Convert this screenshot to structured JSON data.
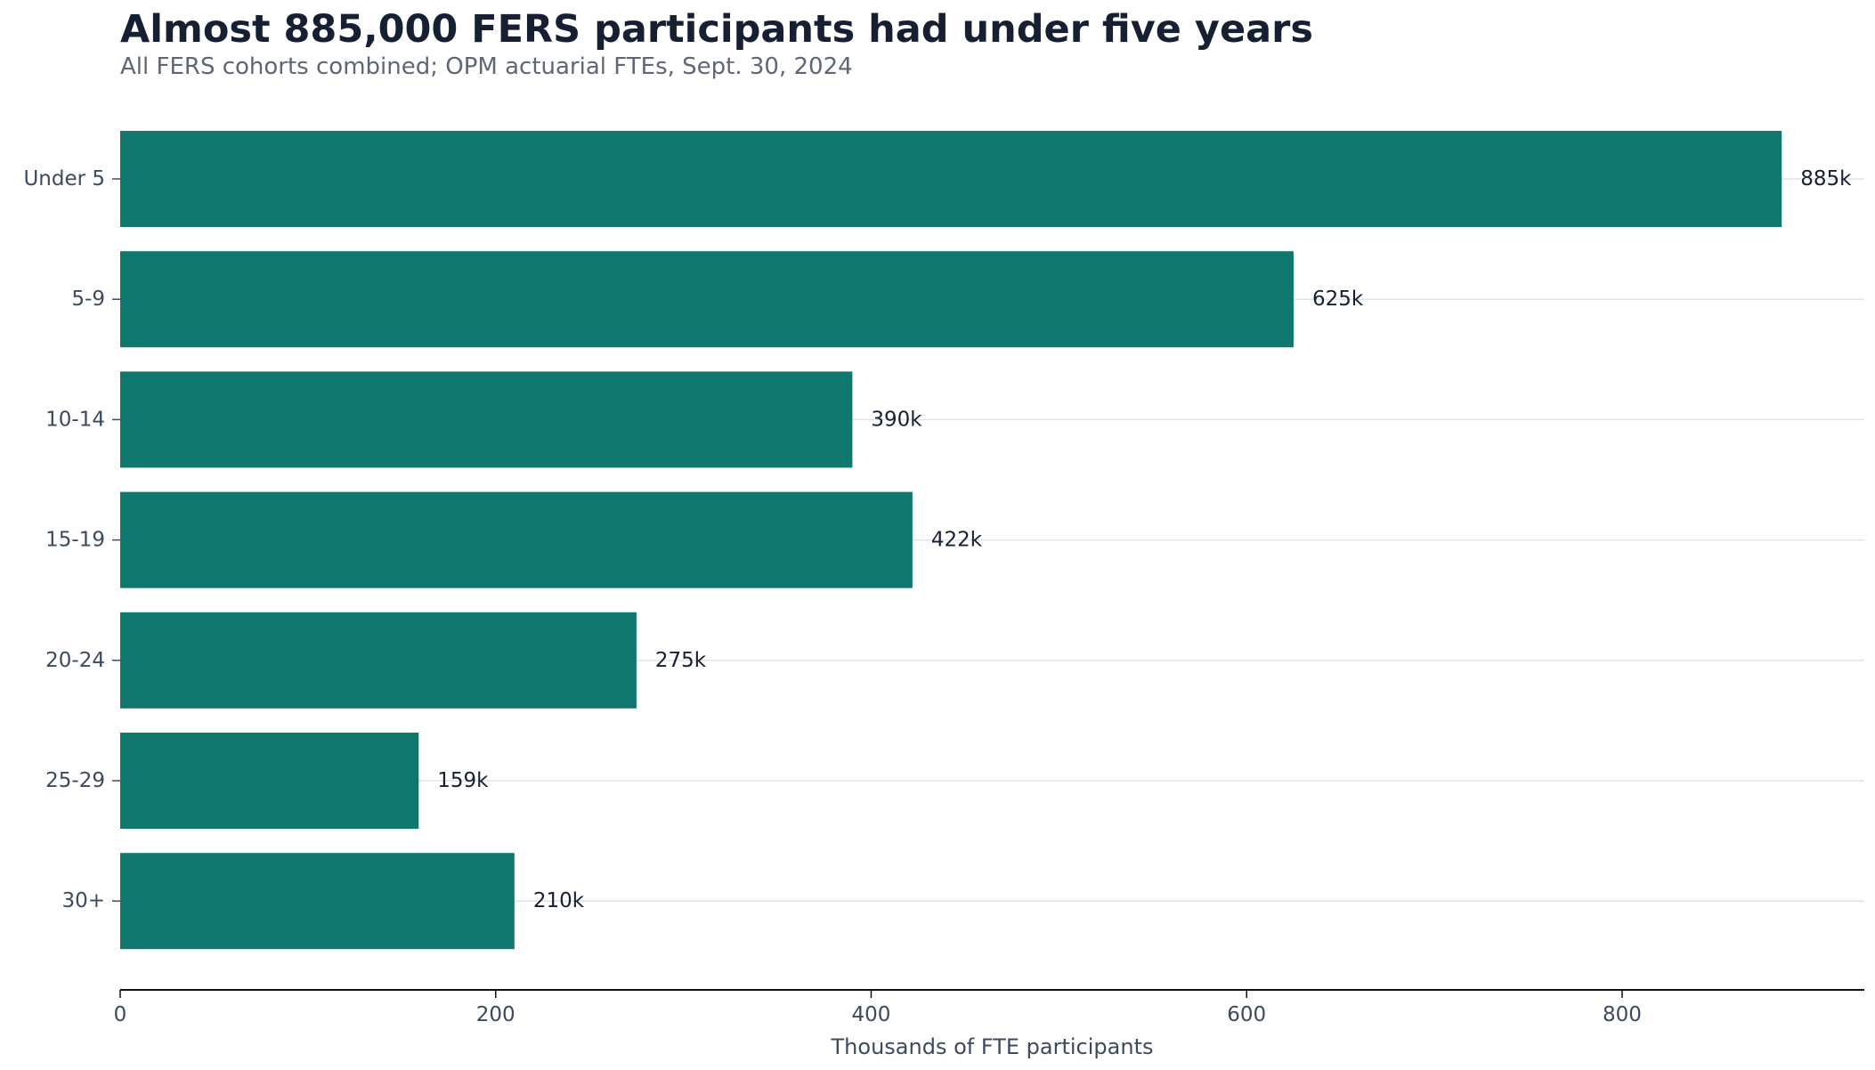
{
  "chart_data": {
    "type": "bar",
    "orientation": "horizontal",
    "title": "Almost 885,000 FERS participants had under five years",
    "subtitle": "All FERS cohorts combined; OPM actuarial FTEs, Sept. 30, 2024",
    "xlabel": "Thousands of FTE participants",
    "ylabel": "",
    "categories": [
      "Under 5",
      "5-9",
      "10-14",
      "15-19",
      "20-24",
      "25-29",
      "30+"
    ],
    "values": [
      885,
      625,
      390,
      422,
      275,
      159,
      210
    ],
    "data_labels": [
      "885k",
      "625k",
      "390k",
      "422k",
      "275k",
      "159k",
      "210k"
    ],
    "xlim": [
      0,
      929
    ],
    "x_ticks": [
      0,
      200,
      400,
      600,
      800
    ],
    "x_tick_labels": [
      "0",
      "200",
      "400",
      "600",
      "800"
    ],
    "grid": "horizontal lines at categories",
    "legend": "none",
    "colors": {
      "bar": "#10776f",
      "title": "#172033",
      "subtitle": "#5f6775",
      "axis_text": "#3c4a5f",
      "data_label": "#172033",
      "grid": "#dfe2ea",
      "axis_line": "#111111"
    }
  }
}
